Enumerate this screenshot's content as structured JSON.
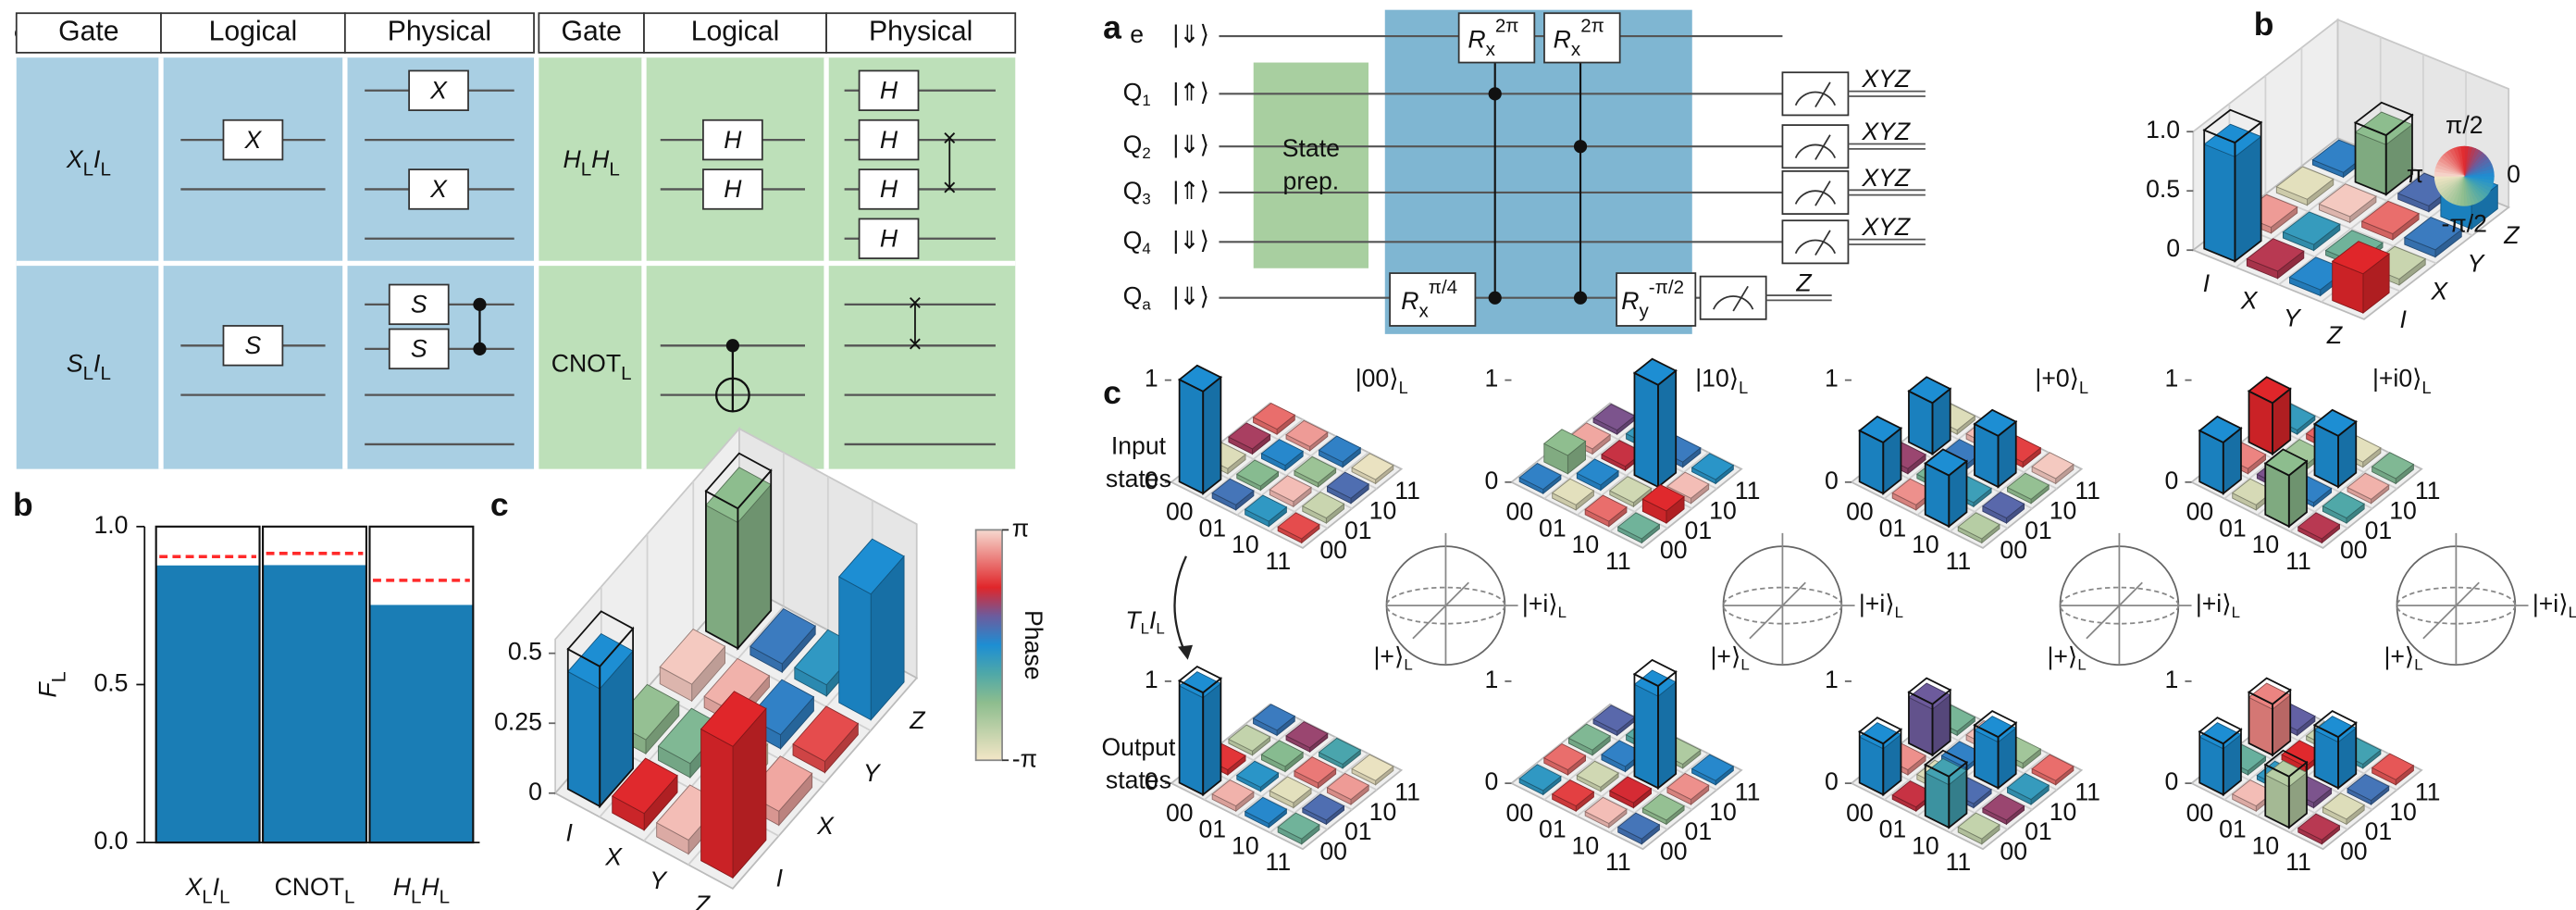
{
  "panel_labels": {
    "left": [
      "a",
      "b",
      "c"
    ],
    "right": [
      "a",
      "b",
      "c"
    ]
  },
  "table": {
    "headers": [
      "Gate",
      "Logical",
      "Physical",
      "Gate",
      "Logical",
      "Physical"
    ],
    "rows": [
      {
        "gate": [
          "X",
          "L",
          "I",
          "L"
        ],
        "logical": [
          "X"
        ],
        "physical": [
          "X",
          "X"
        ]
      },
      {
        "gate": [
          "S",
          "L",
          "I",
          "L"
        ],
        "logical": [
          "S"
        ],
        "physical": [
          "S",
          "S"
        ]
      },
      {
        "gate": [
          "H",
          "L",
          "H",
          "L"
        ],
        "logical": [
          "H",
          "H"
        ],
        "physical": [
          "H",
          "H",
          "H",
          "H"
        ]
      },
      {
        "gate": [
          "CNOT",
          "L"
        ]
      }
    ]
  },
  "circuit": {
    "wires": [
      {
        "name": [
          "e"
        ],
        "ket": "|⇓⟩"
      },
      {
        "name": [
          "Q",
          "1"
        ],
        "ket": "|⇑⟩"
      },
      {
        "name": [
          "Q",
          "2"
        ],
        "ket": "|⇓⟩"
      },
      {
        "name": [
          "Q",
          "3"
        ],
        "ket": "|⇑⟩"
      },
      {
        "name": [
          "Q",
          "4"
        ],
        "ket": "|⇓⟩"
      },
      {
        "name": [
          "Q",
          "a"
        ],
        "ket": "|⇓⟩"
      }
    ],
    "state_prep": [
      "State",
      "prep."
    ],
    "gates": [
      [
        "R",
        "x",
        "2π"
      ],
      [
        "R",
        "x",
        "2π"
      ],
      [
        "R",
        "x",
        "π/4"
      ],
      [
        "R",
        "y",
        "-π/2"
      ]
    ],
    "readout": [
      "XYZ",
      "XYZ",
      "XYZ",
      "XYZ"
    ],
    "ancilla_readout": "Z"
  },
  "figure_texts": {
    "input_states": [
      "Input",
      "states"
    ],
    "output_states": [
      "Output",
      "states"
    ],
    "operation": [
      "T",
      "L",
      "I",
      "L"
    ],
    "bloch_y": [
      "|+i⟩",
      "L"
    ],
    "bloch_x": [
      "|+⟩",
      "L"
    ]
  },
  "phase_colormap": [
    {
      "phase": -3.1416,
      "color": "#f3e6c6"
    },
    {
      "phase": -1.5708,
      "color": "#8dbd8e"
    },
    {
      "phase": -0.7854,
      "color": "#4fa8a8"
    },
    {
      "phase": 0,
      "color": "#1d8ed3"
    },
    {
      "phase": 0.7854,
      "color": "#6b5c9e"
    },
    {
      "phase": 1.5708,
      "color": "#e0262a"
    },
    {
      "phase": 3.1416,
      "color": "#f6d9cf"
    }
  ],
  "chart_data": [
    {
      "type": "bar",
      "ylabel": [
        "F",
        "L"
      ],
      "categories": [
        [
          "X",
          "L",
          "I",
          "L"
        ],
        [
          "CNOT",
          "L"
        ],
        [
          "H",
          "L",
          "H",
          "L"
        ]
      ],
      "values": [
        0.877,
        0.878,
        0.752
      ],
      "ideal": [
        1,
        1,
        1
      ],
      "reference_values": [
        0.905,
        0.915,
        0.83
      ],
      "color": "#1a7db5",
      "reference_color": "#ff2a2a",
      "ylim": [
        0,
        1
      ],
      "yticks": [
        {
          "value": 0,
          "label": "0.0"
        },
        {
          "value": 0.5,
          "label": "0.5"
        },
        {
          "value": 1,
          "label": "1.0"
        }
      ]
    },
    {
      "type": "bar3d",
      "walls": true,
      "row_labels": [
        "I",
        "X",
        "Y",
        "Z"
      ],
      "col_labels": [
        "I",
        "X",
        "Y",
        "Z"
      ],
      "values": [
        0.42,
        0.05,
        0.06,
        0.45,
        0.06,
        0.05,
        0.04,
        0.03,
        0.05,
        0.07,
        0.05,
        0.04,
        0.47,
        0.05,
        0.04,
        0.45
      ],
      "phases": [
        0,
        -1.7,
        3.0,
        -1.57,
        1.6,
        -1.4,
        2.8,
        0.3,
        2.9,
        -2.9,
        0.2,
        -0.3,
        1.57,
        2.7,
        1.9,
        0
      ],
      "ideal": [
        0.5,
        0,
        0,
        0.5,
        0,
        0,
        0,
        0,
        0,
        0,
        0,
        0,
        0,
        0,
        0,
        0
      ],
      "zlim": [
        0,
        0.55
      ],
      "zticks": [
        0,
        0.25,
        0.5
      ],
      "colorbar": {
        "label": "Phase",
        "lim": [
          -3.1416,
          3.1416
        ],
        "ticks": [
          {
            "value": 3.1416,
            "label": "π"
          },
          {
            "value": -3.1416,
            "label": "-π"
          }
        ]
      }
    },
    {
      "type": "bar3d",
      "walls": true,
      "row_labels": [
        "I",
        "X",
        "Y",
        "Z"
      ],
      "col_labels": [
        "I",
        "X",
        "Y",
        "Z"
      ],
      "values": [
        0.88,
        0.05,
        0.05,
        0.04,
        0.06,
        0.05,
        0.05,
        0.42,
        0.05,
        0.04,
        0.05,
        0.05,
        0.33,
        0.05,
        0.06,
        0.2
      ],
      "phases": [
        0,
        2.6,
        -2.9,
        0.2,
        1.3,
        -0.4,
        3.0,
        -1.57,
        0.1,
        -1.2,
        2.2,
        0.5,
        1.57,
        -2.5,
        0.3,
        0
      ],
      "ideal": [
        1,
        0,
        0,
        0,
        0,
        0,
        0,
        0.5,
        0,
        0,
        0,
        0,
        0,
        0,
        0,
        0
      ],
      "zlim": [
        0,
        1
      ],
      "zticks": [
        0,
        0.5,
        {
          "value": 1,
          "label": "1.0"
        }
      ],
      "phase_wheel": {
        "ticks": [
          {
            "value": 1.5708,
            "label": "π/2"
          },
          {
            "value": 3.1416,
            "label": "π"
          },
          0,
          {
            "value": -1.5708,
            "label": "-π/2"
          }
        ]
      }
    },
    {
      "type": "bar3d",
      "title": [
        "|00⟩",
        "L"
      ],
      "row_labels": [
        "00",
        "01",
        "10",
        "11"
      ],
      "col_labels": [
        "00",
        "01",
        "10",
        "11"
      ],
      "values": [
        1,
        0.05,
        0.05,
        0.05,
        0.05,
        0.04,
        0.05,
        0.04,
        0.05,
        0.05,
        0.04,
        0.05,
        0.04,
        0.05,
        0.05,
        0.04
      ],
      "phases": [
        0,
        -2.8,
        1.2,
        2.2,
        0.4,
        -1.5,
        0.1,
        2.6,
        -0.3,
        2.9,
        -1.8,
        0.2,
        1.9,
        -2.5,
        0.5,
        -3.0
      ],
      "ideal": [
        1,
        0,
        0,
        0,
        0,
        0,
        0,
        0,
        0,
        0,
        0,
        0,
        0,
        0,
        0,
        0
      ],
      "zlim": [
        0,
        1
      ],
      "zticks": [
        0,
        1
      ]
    },
    {
      "type": "bar3d",
      "title": [
        "|10⟩",
        "L"
      ],
      "row_labels": [
        "00",
        "01",
        "10",
        "11"
      ],
      "col_labels": [
        "00",
        "01",
        "10",
        "11"
      ],
      "values": [
        0.04,
        0.18,
        0.05,
        0.04,
        0.05,
        0.05,
        0.04,
        0.05,
        0.05,
        0.04,
        1,
        0.05,
        0.04,
        0.12,
        0.05,
        0.04
      ],
      "phases": [
        0.2,
        -1.6,
        2.7,
        0.9,
        -2.9,
        0.1,
        1.4,
        -0.4,
        2.2,
        -2.6,
        0,
        0.3,
        -1.2,
        1.6,
        2.9,
        -0.2
      ],
      "ideal": [
        0,
        0,
        0,
        0,
        0,
        0,
        0,
        0,
        0,
        0,
        1,
        0,
        0,
        0,
        0,
        0
      ],
      "zlim": [
        0,
        1
      ],
      "zticks": [
        0,
        1
      ]
    },
    {
      "type": "bar3d",
      "title": [
        "|+0⟩",
        "L"
      ],
      "row_labels": [
        "00",
        "01",
        "10",
        "11"
      ],
      "col_labels": [
        "00",
        "01",
        "10",
        "11"
      ],
      "values": [
        0.5,
        0.05,
        0.5,
        0.04,
        0.05,
        0.04,
        0.05,
        0.05,
        0.5,
        0.04,
        0.5,
        0.05,
        0.04,
        0.05,
        0.04,
        0.05
      ],
      "phases": [
        0,
        1.1,
        0,
        -2.8,
        2.5,
        -1.3,
        0.3,
        2.9,
        0,
        -0.5,
        0,
        1.8,
        -2.2,
        0.6,
        -1.7,
        3.0
      ],
      "ideal": [
        0.5,
        0,
        0.5,
        0,
        0,
        0,
        0,
        0,
        0.5,
        0,
        0.5,
        0,
        0,
        0,
        0,
        0
      ],
      "zlim": [
        0,
        1
      ],
      "zticks": [
        0,
        1
      ]
    },
    {
      "type": "bar3d",
      "title": [
        "|+i0⟩",
        "L"
      ],
      "row_labels": [
        "00",
        "01",
        "10",
        "11"
      ],
      "col_labels": [
        "00",
        "01",
        "10",
        "11"
      ],
      "values": [
        0.5,
        0.05,
        0.5,
        0.04,
        0.05,
        0.04,
        0.05,
        0.05,
        0.5,
        0.04,
        0.5,
        0.05,
        0.04,
        0.05,
        0.04,
        0.05
      ],
      "phases": [
        0,
        2.4,
        1.57,
        -0.4,
        -2.7,
        0.9,
        -1.9,
        2.1,
        -1.57,
        0.2,
        0,
        -2.9,
        1.3,
        -0.8,
        2.8,
        -1.4
      ],
      "ideal": [
        0.5,
        0,
        0.5,
        0,
        0,
        0,
        0,
        0,
        0.5,
        0,
        0.5,
        0,
        0,
        0,
        0,
        0
      ],
      "zlim": [
        0,
        1
      ],
      "zticks": [
        0,
        1
      ]
    },
    {
      "type": "bar3d",
      "row_labels": [
        "00",
        "01",
        "10",
        "11"
      ],
      "col_labels": [
        "00",
        "01",
        "10",
        "11"
      ],
      "values": [
        0.95,
        0.05,
        0.04,
        0.05,
        0.05,
        0.04,
        0.05,
        0.04,
        0.04,
        0.05,
        0.05,
        0.04,
        0.05,
        0.04,
        0.05,
        0.04
      ],
      "phases": [
        0,
        1.7,
        -2.4,
        0.3,
        2.8,
        -0.2,
        -1.5,
        1.1,
        0.1,
        -2.9,
        2.3,
        -0.7,
        -1.2,
        0.5,
        2.6,
        -3.0
      ],
      "ideal": [
        1,
        0,
        0,
        0,
        0,
        0,
        0,
        0,
        0,
        0,
        0,
        0,
        0,
        0,
        0,
        0
      ],
      "zlim": [
        0,
        1
      ],
      "zticks": [
        0,
        1
      ]
    },
    {
      "type": "bar3d",
      "row_labels": [
        "00",
        "01",
        "10",
        "11"
      ],
      "col_labels": [
        "00",
        "01",
        "10",
        "11"
      ],
      "values": [
        0.04,
        0.05,
        0.05,
        0.04,
        0.05,
        0.04,
        0.05,
        0.05,
        0.04,
        0.05,
        0.9,
        0.04,
        0.05,
        0.04,
        0.05,
        0.04
      ],
      "phases": [
        -0.3,
        2.2,
        -1.4,
        0.6,
        1.8,
        -2.6,
        0.2,
        -0.9,
        2.9,
        1.5,
        0,
        -2.1,
        0.4,
        -1.7,
        2.5,
        0.1
      ],
      "ideal": [
        0,
        0,
        0,
        0,
        0,
        0,
        0,
        0,
        0,
        0,
        1,
        0,
        0,
        0,
        0,
        0
      ],
      "zlim": [
        0,
        1
      ],
      "zticks": [
        0,
        1
      ]
    },
    {
      "type": "bar3d",
      "row_labels": [
        "00",
        "01",
        "10",
        "11"
      ],
      "col_labels": [
        "00",
        "01",
        "10",
        "11"
      ],
      "values": [
        0.45,
        0.05,
        0.45,
        0.04,
        0.04,
        0.05,
        0.04,
        0.05,
        0.42,
        0.04,
        0.45,
        0.05,
        0.05,
        0.04,
        0.05,
        0.04
      ],
      "phases": [
        0,
        2.5,
        0.8,
        -1.3,
        1.4,
        -2.8,
        0.2,
        2.9,
        -0.6,
        0.5,
        0,
        -1.9,
        -2.4,
        1.1,
        -0.4,
        2.2
      ],
      "ideal": [
        0.5,
        0,
        0.5,
        0,
        0,
        0,
        0,
        0,
        0.5,
        0,
        0.5,
        0,
        0,
        0,
        0,
        0
      ],
      "zlim": [
        0,
        1
      ],
      "zticks": [
        0,
        1
      ]
    },
    {
      "type": "bar3d",
      "row_labels": [
        "00",
        "01",
        "10",
        "11"
      ],
      "col_labels": [
        "00",
        "01",
        "10",
        "11"
      ],
      "values": [
        0.45,
        0.04,
        0.45,
        0.05,
        0.05,
        0.04,
        0.05,
        0.04,
        0.4,
        0.05,
        0.45,
        0.04,
        0.04,
        0.05,
        0.04,
        0.05
      ],
      "phases": [
        0,
        -1.1,
        2.4,
        0.7,
        2.9,
        -0.3,
        1.6,
        -2.5,
        -2.2,
        0.9,
        0,
        -0.6,
        1.3,
        -2.8,
        0.4,
        2.0
      ],
      "ideal": [
        0.5,
        0,
        0.5,
        0,
        0,
        0,
        0,
        0,
        0.5,
        0,
        0.5,
        0,
        0,
        0,
        0,
        0
      ],
      "zlim": [
        0,
        1
      ],
      "zticks": [
        0,
        1
      ]
    }
  ]
}
